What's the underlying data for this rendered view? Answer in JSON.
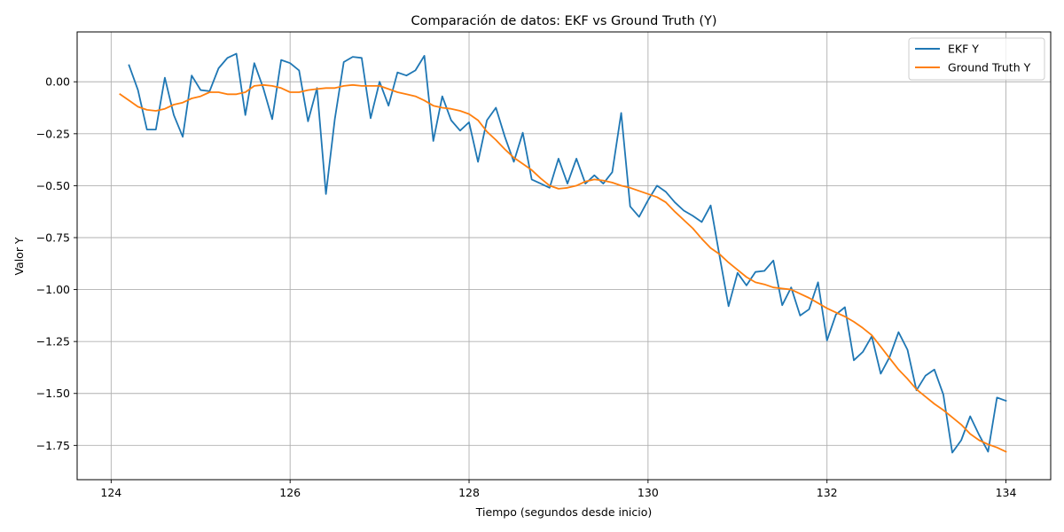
{
  "chart_data": {
    "type": "line",
    "title": "Comparación de datos: EKF vs Ground Truth (Y)",
    "xlabel": "Tiempo (segundos desde inicio)",
    "ylabel": "Valor Y",
    "xlim": [
      123.62,
      134.5
    ],
    "ylim": [
      -1.915,
      0.24
    ],
    "x_ticks": [
      124,
      126,
      128,
      130,
      132,
      134
    ],
    "x_tick_labels": [
      "124",
      "126",
      "128",
      "130",
      "132",
      "134"
    ],
    "y_ticks": [
      0.0,
      -0.25,
      -0.5,
      -0.75,
      -1.0,
      -1.25,
      -1.5,
      -1.75
    ],
    "y_tick_labels": [
      "0.00",
      "−0.25",
      "−0.50",
      "−0.75",
      "−1.00",
      "−1.25",
      "−1.50",
      "−1.75"
    ],
    "grid": true,
    "legend_position": "upper right",
    "series": [
      {
        "name": "EKF Y",
        "color": "#1f77b4",
        "x": [
          124.2,
          124.3,
          124.4,
          124.5,
          124.6,
          124.7,
          124.8,
          124.9,
          125.0,
          125.1,
          125.2,
          125.3,
          125.4,
          125.5,
          125.6,
          125.7,
          125.8,
          125.9,
          126.0,
          126.1,
          126.2,
          126.3,
          126.4,
          126.5,
          126.6,
          126.7,
          126.8,
          126.9,
          127.0,
          127.1,
          127.2,
          127.3,
          127.4,
          127.5,
          127.6,
          127.7,
          127.8,
          127.9,
          128.0,
          128.1,
          128.2,
          128.3,
          128.4,
          128.5,
          128.6,
          128.7,
          128.8,
          128.9,
          129.0,
          129.1,
          129.2,
          129.3,
          129.4,
          129.5,
          129.6,
          129.7,
          129.8,
          129.9,
          130.0,
          130.1,
          130.2,
          130.3,
          130.4,
          130.5,
          130.6,
          130.7,
          130.8,
          130.9,
          131.0,
          131.1,
          131.2,
          131.3,
          131.4,
          131.5,
          131.6,
          131.7,
          131.8,
          131.9,
          132.0,
          132.1,
          132.2,
          132.3,
          132.4,
          132.5,
          132.6,
          132.7,
          132.8,
          132.9,
          133.0,
          133.1,
          133.2,
          133.3,
          133.4,
          133.5,
          133.6,
          133.7,
          133.8,
          133.9,
          134.0
        ],
        "y": [
          0.08,
          -0.04,
          -0.23,
          -0.23,
          0.02,
          -0.16,
          -0.265,
          0.03,
          -0.04,
          -0.045,
          0.065,
          0.115,
          0.135,
          -0.16,
          0.09,
          -0.03,
          -0.18,
          0.105,
          0.09,
          0.055,
          -0.19,
          -0.03,
          -0.54,
          -0.18,
          0.095,
          0.12,
          0.115,
          -0.175,
          0.0,
          -0.115,
          0.045,
          0.03,
          0.055,
          0.125,
          -0.285,
          -0.07,
          -0.185,
          -0.235,
          -0.195,
          -0.385,
          -0.185,
          -0.125,
          -0.265,
          -0.385,
          -0.245,
          -0.47,
          -0.49,
          -0.51,
          -0.37,
          -0.49,
          -0.37,
          -0.49,
          -0.45,
          -0.49,
          -0.435,
          -0.15,
          -0.6,
          -0.65,
          -0.57,
          -0.5,
          -0.53,
          -0.58,
          -0.62,
          -0.645,
          -0.675,
          -0.595,
          -0.84,
          -1.08,
          -0.92,
          -0.98,
          -0.915,
          -0.91,
          -0.86,
          -1.075,
          -0.99,
          -1.125,
          -1.095,
          -0.965,
          -1.245,
          -1.12,
          -1.085,
          -1.34,
          -1.3,
          -1.225,
          -1.405,
          -1.325,
          -1.205,
          -1.29,
          -1.485,
          -1.415,
          -1.385,
          -1.505,
          -1.785,
          -1.725,
          -1.61,
          -1.7,
          -1.78,
          -1.52,
          -1.535
        ]
      },
      {
        "name": "Ground Truth Y",
        "color": "#ff7f0e",
        "x": [
          124.1,
          124.2,
          124.3,
          124.4,
          124.5,
          124.6,
          124.7,
          124.8,
          124.9,
          125.0,
          125.1,
          125.2,
          125.3,
          125.4,
          125.5,
          125.6,
          125.7,
          125.8,
          125.9,
          126.0,
          126.1,
          126.2,
          126.3,
          126.4,
          126.5,
          126.6,
          126.7,
          126.8,
          126.9,
          127.0,
          127.1,
          127.2,
          127.3,
          127.4,
          127.5,
          127.6,
          127.7,
          127.8,
          127.9,
          128.0,
          128.1,
          128.2,
          128.3,
          128.4,
          128.5,
          128.6,
          128.7,
          128.8,
          128.9,
          129.0,
          129.1,
          129.2,
          129.3,
          129.4,
          129.5,
          129.6,
          129.7,
          129.8,
          129.9,
          130.0,
          130.1,
          130.2,
          130.3,
          130.4,
          130.5,
          130.6,
          130.7,
          130.8,
          130.9,
          131.0,
          131.1,
          131.2,
          131.3,
          131.4,
          131.5,
          131.6,
          131.7,
          131.8,
          131.9,
          132.0,
          132.1,
          132.2,
          132.3,
          132.4,
          132.5,
          132.6,
          132.7,
          132.8,
          132.9,
          133.0,
          133.1,
          133.2,
          133.3,
          133.4,
          133.5,
          133.6,
          133.7,
          133.8,
          133.9,
          134.0
        ],
        "y": [
          -0.06,
          -0.09,
          -0.12,
          -0.135,
          -0.14,
          -0.13,
          -0.11,
          -0.1,
          -0.08,
          -0.07,
          -0.05,
          -0.05,
          -0.06,
          -0.06,
          -0.05,
          -0.02,
          -0.015,
          -0.02,
          -0.03,
          -0.05,
          -0.05,
          -0.04,
          -0.035,
          -0.03,
          -0.03,
          -0.02,
          -0.015,
          -0.02,
          -0.02,
          -0.02,
          -0.035,
          -0.05,
          -0.06,
          -0.07,
          -0.09,
          -0.115,
          -0.125,
          -0.13,
          -0.14,
          -0.155,
          -0.185,
          -0.24,
          -0.28,
          -0.325,
          -0.365,
          -0.395,
          -0.425,
          -0.465,
          -0.5,
          -0.515,
          -0.51,
          -0.5,
          -0.48,
          -0.47,
          -0.475,
          -0.485,
          -0.5,
          -0.51,
          -0.525,
          -0.54,
          -0.555,
          -0.58,
          -0.625,
          -0.665,
          -0.705,
          -0.755,
          -0.8,
          -0.83,
          -0.87,
          -0.905,
          -0.94,
          -0.965,
          -0.975,
          -0.99,
          -0.995,
          -1.0,
          -1.02,
          -1.04,
          -1.065,
          -1.09,
          -1.11,
          -1.13,
          -1.155,
          -1.185,
          -1.22,
          -1.275,
          -1.33,
          -1.385,
          -1.43,
          -1.48,
          -1.515,
          -1.55,
          -1.58,
          -1.615,
          -1.65,
          -1.695,
          -1.725,
          -1.745,
          -1.76,
          -1.78
        ]
      }
    ]
  }
}
